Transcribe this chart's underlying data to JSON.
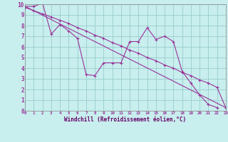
{
  "xlabel": "Windchill (Refroidissement éolien,°C)",
  "bg_color": "#c8eeee",
  "line_color": "#993399",
  "grid_color": "#99cccc",
  "x_range": [
    0,
    23
  ],
  "y_range": [
    0,
    10
  ],
  "line1_x": [
    0,
    1,
    2,
    3,
    4,
    5,
    6,
    7,
    8,
    9,
    10,
    11,
    12,
    13,
    14,
    15,
    16,
    17,
    18,
    19,
    20,
    21,
    22
  ],
  "line1_y": [
    9.8,
    9.8,
    10.1,
    7.2,
    8.1,
    7.5,
    6.8,
    3.4,
    3.3,
    4.5,
    4.5,
    4.5,
    6.5,
    6.5,
    7.8,
    6.7,
    7.0,
    6.5,
    3.7,
    2.6,
    1.5,
    0.6,
    0.3
  ],
  "line2_x": [
    0,
    1,
    2,
    3,
    4,
    5,
    6,
    7,
    8,
    9,
    10,
    11,
    12,
    13,
    14,
    15,
    16,
    17,
    18,
    19,
    20,
    21,
    22,
    23
  ],
  "line2_y": [
    9.7,
    9.4,
    9.1,
    8.8,
    8.5,
    8.2,
    7.8,
    7.5,
    7.1,
    6.8,
    6.4,
    6.1,
    5.7,
    5.4,
    5.0,
    4.7,
    4.3,
    4.0,
    3.6,
    3.3,
    2.9,
    2.6,
    2.2,
    0.3
  ],
  "line3_x": [
    0,
    23
  ],
  "line3_y": [
    9.8,
    0.3
  ],
  "tick_color": "#993399",
  "label_color": "#660066",
  "x_ticks": [
    0,
    1,
    2,
    3,
    4,
    5,
    6,
    7,
    8,
    9,
    10,
    11,
    12,
    13,
    14,
    15,
    16,
    17,
    18,
    19,
    20,
    21,
    22,
    23
  ],
  "y_ticks": [
    0,
    1,
    2,
    3,
    4,
    5,
    6,
    7,
    8,
    9,
    10
  ]
}
